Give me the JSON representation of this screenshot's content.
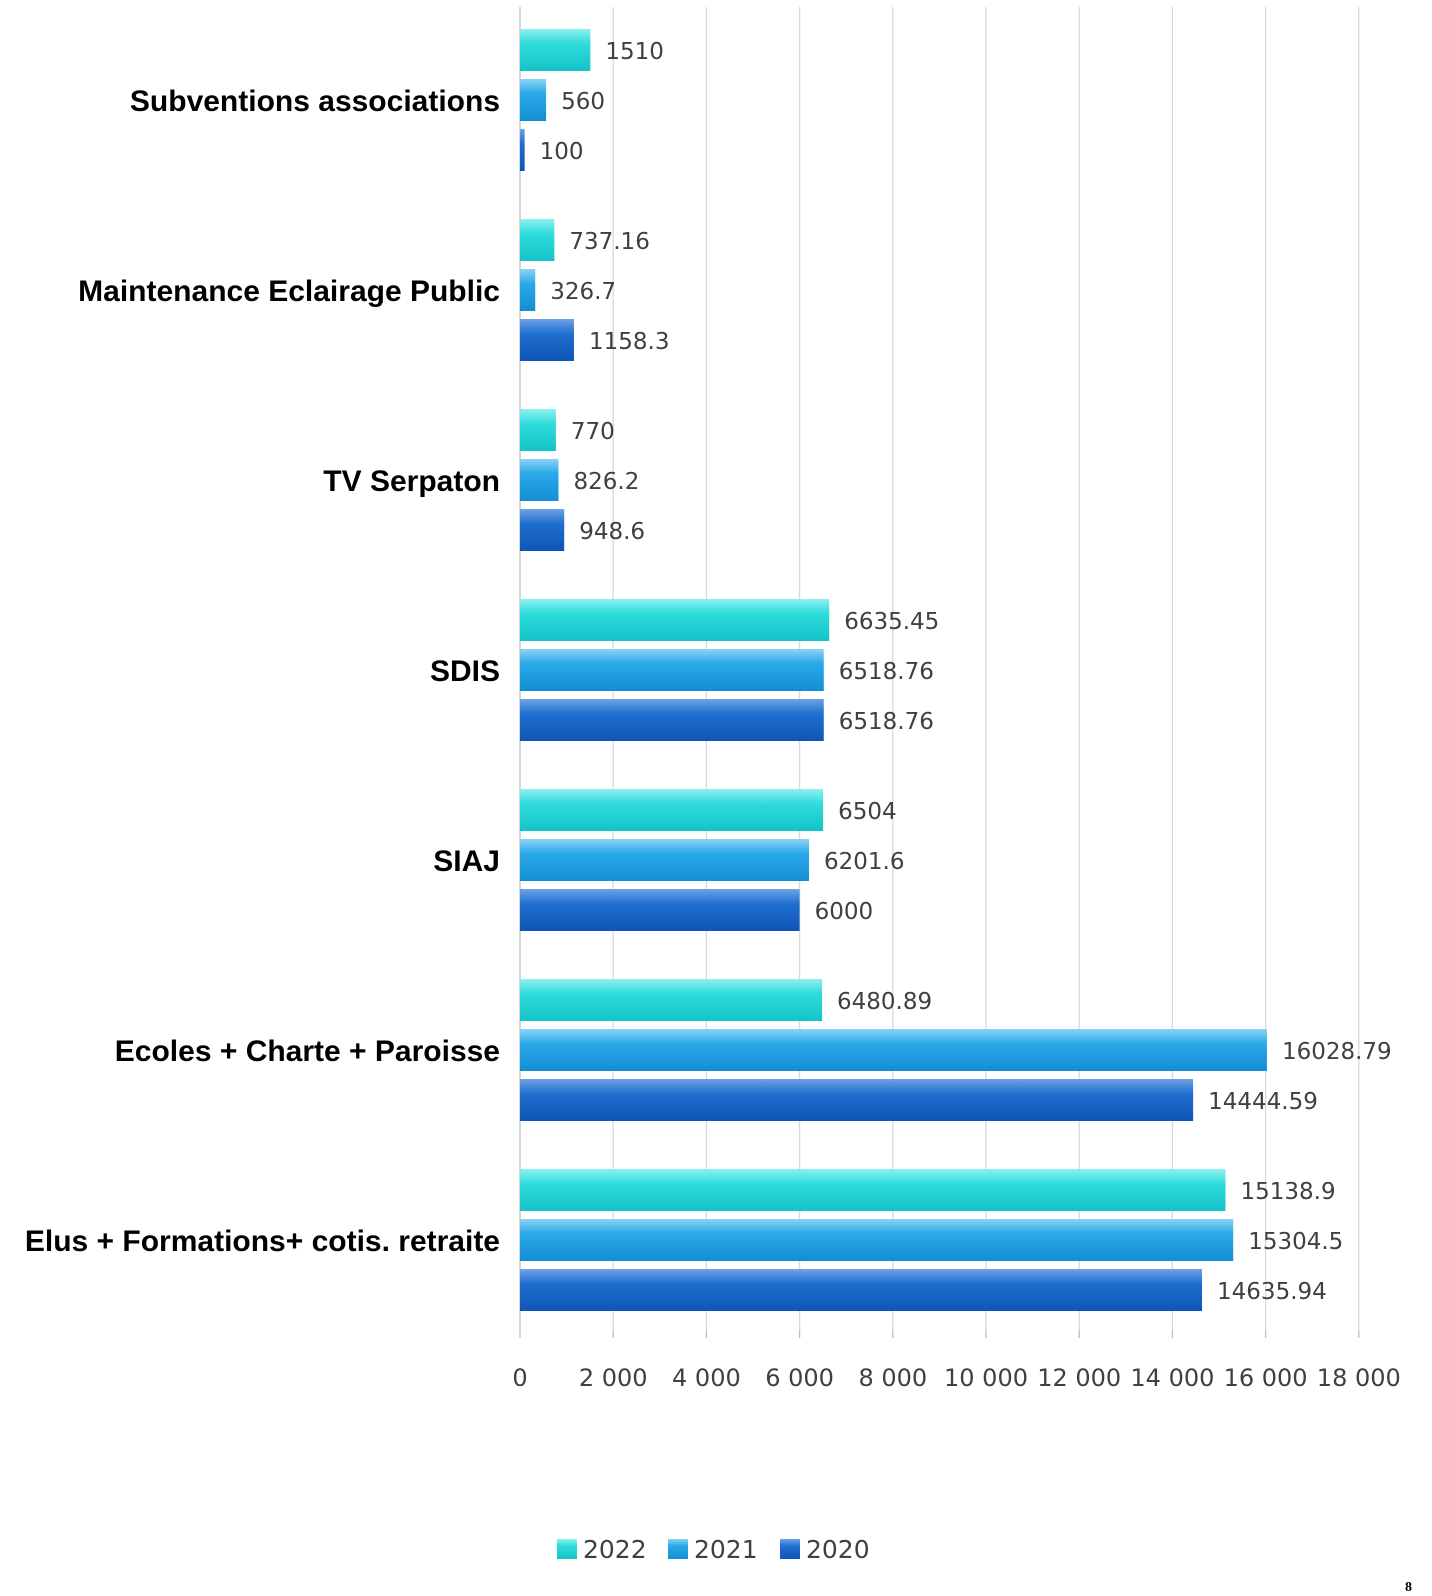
{
  "chart_data": {
    "type": "bar",
    "orientation": "horizontal",
    "categories": [
      "Subventions  associations",
      "Maintenance Eclairage Public",
      "TV Serpaton",
      "SDIS",
      "SIAJ",
      "Ecoles + Charte + Paroisse",
      "Elus + Formations+ cotis. retraite"
    ],
    "series": [
      {
        "name": "2022",
        "color": "#1fd6d8",
        "values": [
          1510,
          737.16,
          770,
          6635.45,
          6504,
          6480.89,
          15138.9
        ],
        "labels": [
          "1510",
          "737.16",
          "770",
          "6635.45",
          "6504",
          "6480.89",
          "15138.9"
        ]
      },
      {
        "name": "2021",
        "color": "#1fa3e3",
        "values": [
          560,
          326.7,
          826.2,
          6518.76,
          6201.6,
          16028.79,
          15304.5
        ],
        "labels": [
          "560",
          "326.7",
          "826.2",
          "6518.76",
          "6201.6",
          "16028.79",
          "15304.5"
        ]
      },
      {
        "name": "2020",
        "color": "#1565c8",
        "values": [
          100,
          1158.3,
          948.6,
          6518.76,
          6000,
          14444.59,
          14635.94
        ],
        "labels": [
          "100",
          "1158.3",
          "948.6",
          "6518.76",
          "6000",
          "14444.59",
          "14635.94"
        ]
      }
    ],
    "xlim": [
      0,
      18000
    ],
    "xticks": [
      0,
      2000,
      4000,
      6000,
      8000,
      10000,
      12000,
      14000,
      16000,
      18000
    ],
    "xtick_labels": [
      "0",
      "2 000",
      "4 000",
      "6 000",
      "8 000",
      "10 000",
      "12 000",
      "14 000",
      "16 000",
      "18 000"
    ],
    "grid": "vertical",
    "legend": "bottom-center",
    "title": "",
    "xlabel": "",
    "ylabel": ""
  },
  "page_number": "8"
}
